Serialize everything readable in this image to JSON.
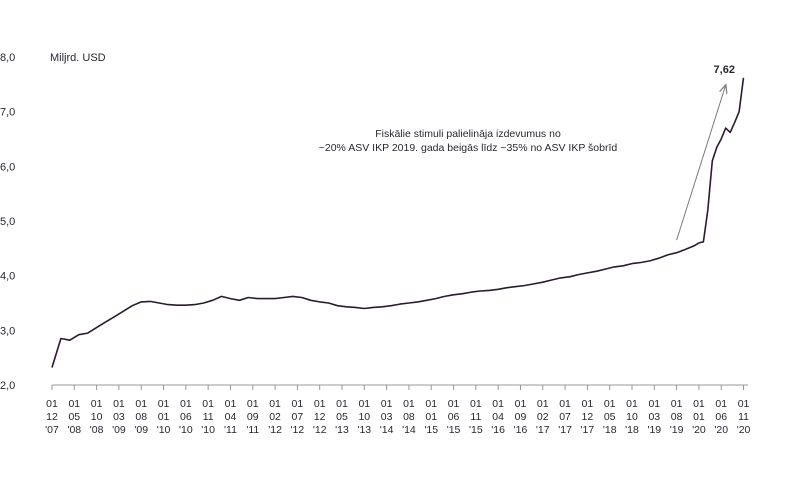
{
  "chart_data": {
    "type": "line",
    "unit_label": "Miljrd. USD",
    "ylim": [
      2.0,
      8.0
    ],
    "yticks": [
      "2,0",
      "3,0",
      "4,0",
      "5,0",
      "6,0",
      "7,0",
      "8,0"
    ],
    "ytick_values": [
      2,
      3,
      4,
      5,
      6,
      7,
      8
    ],
    "xlim": [
      "2007-12",
      "2020-12"
    ],
    "xticks": [
      {
        "date": "2007-12",
        "lines": [
          "01",
          "12",
          "'07"
        ]
      },
      {
        "date": "2008-05",
        "lines": [
          "01",
          "05",
          "'08"
        ]
      },
      {
        "date": "2008-10",
        "lines": [
          "01",
          "10",
          "'08"
        ]
      },
      {
        "date": "2009-03",
        "lines": [
          "01",
          "03",
          "'09"
        ]
      },
      {
        "date": "2009-08",
        "lines": [
          "01",
          "08",
          "'09"
        ]
      },
      {
        "date": "2010-01",
        "lines": [
          "01",
          "01",
          "'10"
        ]
      },
      {
        "date": "2010-06",
        "lines": [
          "01",
          "06",
          "'10"
        ]
      },
      {
        "date": "2010-11",
        "lines": [
          "01",
          "11",
          "'10"
        ]
      },
      {
        "date": "2011-04",
        "lines": [
          "01",
          "04",
          "'11"
        ]
      },
      {
        "date": "2011-09",
        "lines": [
          "01",
          "09",
          "'11"
        ]
      },
      {
        "date": "2012-02",
        "lines": [
          "01",
          "02",
          "'12"
        ]
      },
      {
        "date": "2012-07",
        "lines": [
          "01",
          "07",
          "'12"
        ]
      },
      {
        "date": "2012-12",
        "lines": [
          "01",
          "12",
          "'12"
        ]
      },
      {
        "date": "2013-05",
        "lines": [
          "01",
          "05",
          "'13"
        ]
      },
      {
        "date": "2013-10",
        "lines": [
          "01",
          "10",
          "'13"
        ]
      },
      {
        "date": "2014-03",
        "lines": [
          "01",
          "03",
          "'14"
        ]
      },
      {
        "date": "2014-08",
        "lines": [
          "01",
          "08",
          "'14"
        ]
      },
      {
        "date": "2015-01",
        "lines": [
          "01",
          "01",
          "'15"
        ]
      },
      {
        "date": "2015-06",
        "lines": [
          "01",
          "06",
          "'15"
        ]
      },
      {
        "date": "2015-11",
        "lines": [
          "01",
          "11",
          "'15"
        ]
      },
      {
        "date": "2016-04",
        "lines": [
          "01",
          "04",
          "'16"
        ]
      },
      {
        "date": "2016-09",
        "lines": [
          "01",
          "09",
          "'16"
        ]
      },
      {
        "date": "2017-02",
        "lines": [
          "01",
          "02",
          "'17"
        ]
      },
      {
        "date": "2017-07",
        "lines": [
          "01",
          "07",
          "'17"
        ]
      },
      {
        "date": "2017-12",
        "lines": [
          "01",
          "12",
          "'17"
        ]
      },
      {
        "date": "2018-05",
        "lines": [
          "01",
          "05",
          "'18"
        ]
      },
      {
        "date": "2018-10",
        "lines": [
          "01",
          "10",
          "'18"
        ]
      },
      {
        "date": "2019-03",
        "lines": [
          "01",
          "03",
          "'19"
        ]
      },
      {
        "date": "2019-08",
        "lines": [
          "01",
          "08",
          "'19"
        ]
      },
      {
        "date": "2020-01",
        "lines": [
          "01",
          "01",
          "'20"
        ]
      },
      {
        "date": "2020-06",
        "lines": [
          "01",
          "06",
          "'20"
        ]
      },
      {
        "date": "2020-11",
        "lines": [
          "01",
          "11",
          "'20"
        ]
      }
    ],
    "series": [
      {
        "color": "#2b1b2e",
        "points": [
          [
            "2007-12",
            2.32
          ],
          [
            "2008-02",
            2.85
          ],
          [
            "2008-04",
            2.82
          ],
          [
            "2008-06",
            2.92
          ],
          [
            "2008-08",
            2.95
          ],
          [
            "2008-10",
            3.05
          ],
          [
            "2008-12",
            3.15
          ],
          [
            "2009-02",
            3.25
          ],
          [
            "2009-04",
            3.35
          ],
          [
            "2009-06",
            3.45
          ],
          [
            "2009-08",
            3.52
          ],
          [
            "2009-10",
            3.53
          ],
          [
            "2009-12",
            3.5
          ],
          [
            "2010-02",
            3.47
          ],
          [
            "2010-04",
            3.46
          ],
          [
            "2010-06",
            3.46
          ],
          [
            "2010-08",
            3.47
          ],
          [
            "2010-10",
            3.5
          ],
          [
            "2010-12",
            3.55
          ],
          [
            "2011-02",
            3.62
          ],
          [
            "2011-04",
            3.58
          ],
          [
            "2011-06",
            3.55
          ],
          [
            "2011-08",
            3.6
          ],
          [
            "2011-10",
            3.58
          ],
          [
            "2011-12",
            3.58
          ],
          [
            "2012-02",
            3.58
          ],
          [
            "2012-04",
            3.6
          ],
          [
            "2012-06",
            3.62
          ],
          [
            "2012-08",
            3.6
          ],
          [
            "2012-10",
            3.55
          ],
          [
            "2012-12",
            3.52
          ],
          [
            "2013-02",
            3.5
          ],
          [
            "2013-04",
            3.45
          ],
          [
            "2013-06",
            3.43
          ],
          [
            "2013-08",
            3.42
          ],
          [
            "2013-10",
            3.4
          ],
          [
            "2013-12",
            3.42
          ],
          [
            "2014-02",
            3.43
          ],
          [
            "2014-04",
            3.45
          ],
          [
            "2014-06",
            3.48
          ],
          [
            "2014-08",
            3.5
          ],
          [
            "2014-10",
            3.52
          ],
          [
            "2014-12",
            3.55
          ],
          [
            "2015-02",
            3.58
          ],
          [
            "2015-04",
            3.62
          ],
          [
            "2015-06",
            3.65
          ],
          [
            "2015-08",
            3.67
          ],
          [
            "2015-10",
            3.7
          ],
          [
            "2015-12",
            3.72
          ],
          [
            "2016-02",
            3.73
          ],
          [
            "2016-04",
            3.75
          ],
          [
            "2016-06",
            3.78
          ],
          [
            "2016-08",
            3.8
          ],
          [
            "2016-10",
            3.82
          ],
          [
            "2016-12",
            3.85
          ],
          [
            "2017-02",
            3.88
          ],
          [
            "2017-04",
            3.92
          ],
          [
            "2017-06",
            3.96
          ],
          [
            "2017-08",
            3.98
          ],
          [
            "2017-10",
            4.02
          ],
          [
            "2017-12",
            4.05
          ],
          [
            "2018-02",
            4.08
          ],
          [
            "2018-04",
            4.12
          ],
          [
            "2018-06",
            4.16
          ],
          [
            "2018-08",
            4.18
          ],
          [
            "2018-10",
            4.22
          ],
          [
            "2018-12",
            4.24
          ],
          [
            "2019-02",
            4.27
          ],
          [
            "2019-04",
            4.32
          ],
          [
            "2019-06",
            4.38
          ],
          [
            "2019-08",
            4.42
          ],
          [
            "2019-10",
            4.48
          ],
          [
            "2019-12",
            4.55
          ],
          [
            "2020-01",
            4.6
          ],
          [
            "2020-02",
            4.62
          ],
          [
            "2020-03",
            5.2
          ],
          [
            "2020-04",
            6.1
          ],
          [
            "2020-05",
            6.35
          ],
          [
            "2020-06",
            6.5
          ],
          [
            "2020-07",
            6.7
          ],
          [
            "2020-08",
            6.62
          ],
          [
            "2020-09",
            6.8
          ],
          [
            "2020-10",
            7.0
          ],
          [
            "2020-11",
            7.62
          ]
        ]
      }
    ],
    "last_value_label": "7,62",
    "annotation": {
      "lines": [
        "Fiskālie stimuli palielināja izdevumus no",
        "~20% ASV IKP 2019. gada beigās līdz ~35% no ASV IKP šobrīd"
      ],
      "arrow_from": [
        "2019-08",
        4.65
      ],
      "arrow_to": [
        "2020-11",
        7.55
      ]
    },
    "grid": false,
    "legend": "none"
  }
}
